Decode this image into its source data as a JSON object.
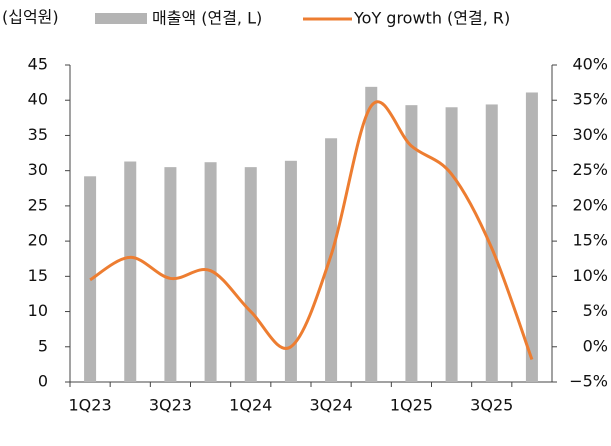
{
  "chart_data": {
    "type": "bar-line",
    "unit_label": "(십억원)",
    "categories": [
      "1Q23",
      null,
      "3Q23",
      null,
      "1Q24",
      null,
      "3Q24",
      null,
      "1Q25",
      null,
      "3Q25",
      null
    ],
    "series": [
      {
        "name": "매출액 (연결, L)",
        "color": "#b4b4b4",
        "type": "bar",
        "axis": "y",
        "values": [
          29.2,
          31.3,
          30.5,
          31.2,
          30.5,
          31.4,
          34.6,
          41.9,
          39.3,
          39.0,
          39.4,
          41.1
        ]
      },
      {
        "name": "YoY growth (연결, R)",
        "color": "#ed7d31",
        "type": "line",
        "axis": "y2",
        "values": [
          9.5,
          12.7,
          9.7,
          10.8,
          5.0,
          0.0,
          13.0,
          34.2,
          28.5,
          24.5,
          14.0,
          -1.8
        ]
      }
    ],
    "ylim": [
      0,
      45
    ],
    "yticks": [
      0,
      5,
      10,
      15,
      20,
      25,
      30,
      35,
      40,
      45
    ],
    "y2lim": [
      -5,
      40
    ],
    "y2ticks": [
      {
        "value": -5,
        "label": "−5%"
      },
      {
        "value": 0,
        "label": "0%"
      },
      {
        "value": 5,
        "label": "5%"
      },
      {
        "value": 10,
        "label": "10%"
      },
      {
        "value": 15,
        "label": "15%"
      },
      {
        "value": 20,
        "label": "20%"
      },
      {
        "value": 25,
        "label": "25%"
      },
      {
        "value": 30,
        "label": "30%"
      },
      {
        "value": 35,
        "label": "35%"
      },
      {
        "value": 40,
        "label": "40%"
      }
    ],
    "grid": false
  }
}
